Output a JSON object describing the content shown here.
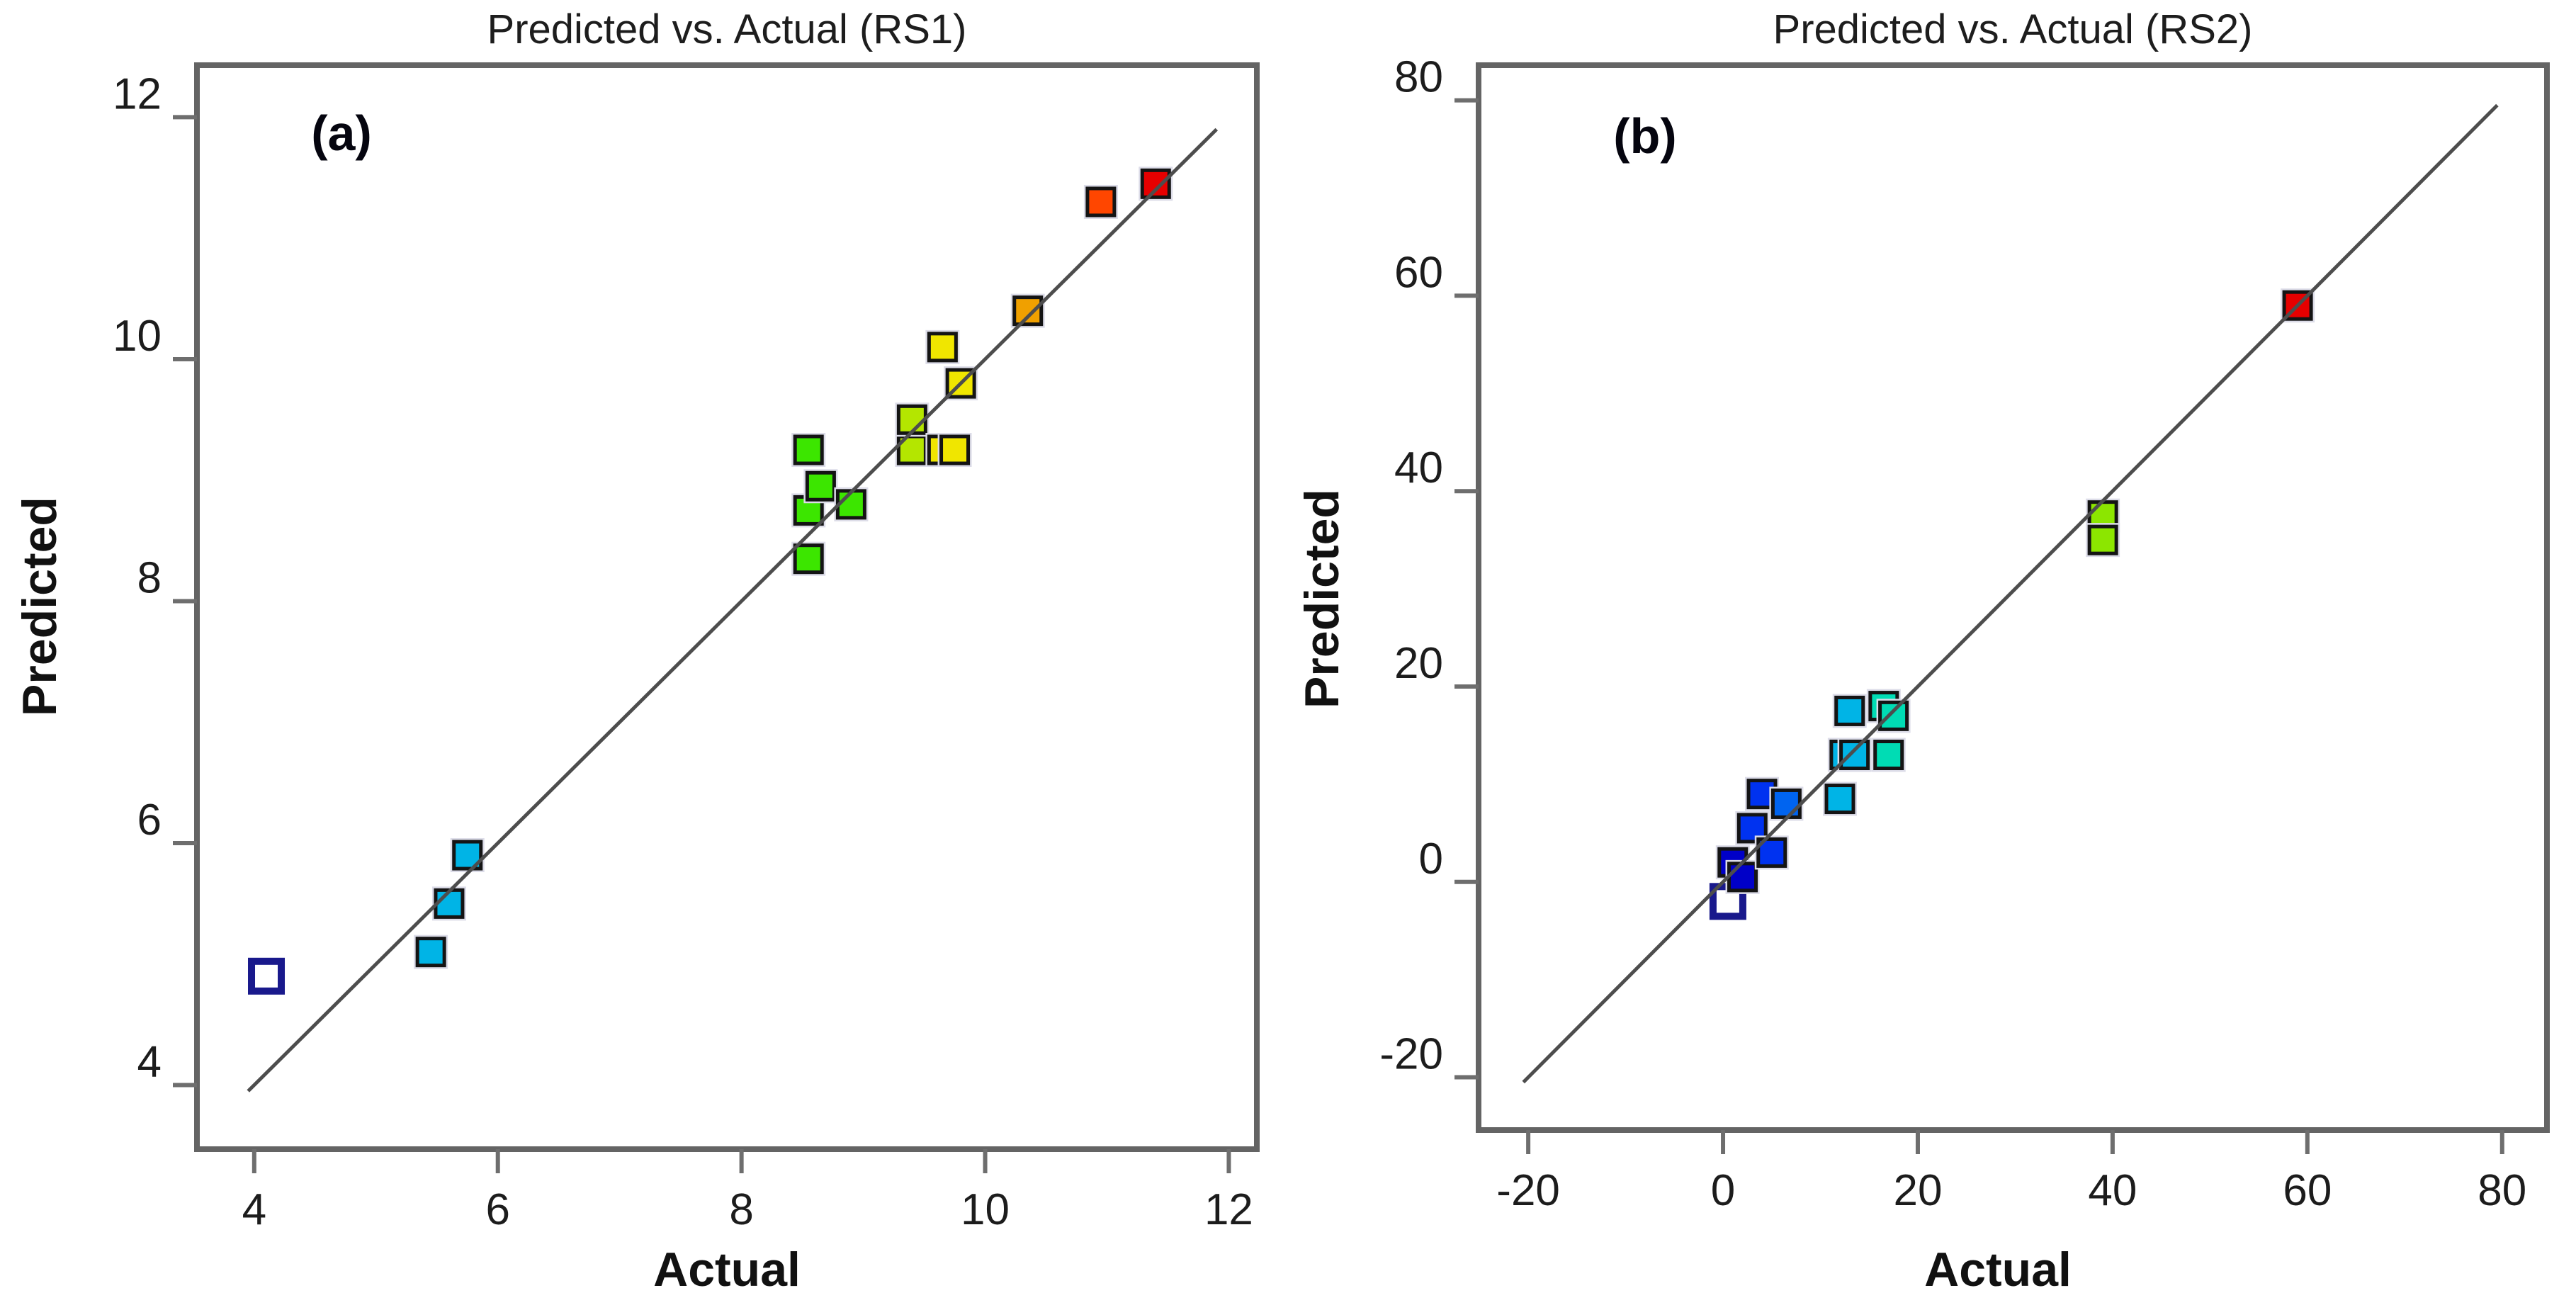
{
  "figure": {
    "panels": [
      {
        "letter": "(a)",
        "title": "Predicted vs. Actual (RS1)",
        "xlabel": "Actual",
        "ylabel": "Predicted"
      },
      {
        "letter": "(b)",
        "title": "Predicted vs. Actual (RS2)",
        "xlabel": "Actual",
        "ylabel": "Predicted"
      }
    ]
  },
  "colors": {
    "box_border": "#646464",
    "tick": "#6e6e6e",
    "tick_label": "#1c1c1c",
    "identity_line": "#4d4d4d",
    "marker_border": "#141414",
    "marker_halo": "#dcdce8",
    "open_marker_border": "#19198c",
    "navy": "#0000c8",
    "blue": "#0032f0",
    "light_blue": "#0064f0",
    "cyan": "#00b4e6",
    "teal": "#00dcb4",
    "green": "#3ce600",
    "green_yellow": "#8ce600",
    "yellow_green": "#b4e600",
    "yellow": "#f0e600",
    "orange": "#f0a000",
    "orange_red": "#ff4600",
    "red": "#e60000"
  },
  "chart_data": [
    {
      "type": "scatter",
      "panel": "(a)",
      "title": "Predicted vs. Actual (RS1)",
      "xlabel": "Actual",
      "ylabel": "Predicted",
      "xlim": [
        3.53,
        12.23
      ],
      "ylim": [
        3.47,
        12.43
      ],
      "xticks": [
        4,
        6,
        8,
        10,
        12
      ],
      "yticks": [
        4,
        6,
        8,
        10,
        12
      ],
      "grid": false,
      "legend": "none",
      "marker": "square",
      "identity_line": {
        "from": 3.95,
        "to": 11.9
      },
      "points": [
        {
          "x": 4.1,
          "y": 4.9,
          "color": "open_navy",
          "fill": "#ffffff",
          "stroke": "#19198c",
          "open": true
        },
        {
          "x": 5.45,
          "y": 5.1,
          "color": "cyan",
          "fill": "#00b4e6"
        },
        {
          "x": 5.6,
          "y": 5.5,
          "color": "cyan",
          "fill": "#00b4e6"
        },
        {
          "x": 5.75,
          "y": 5.9,
          "color": "cyan",
          "fill": "#00b4e6"
        },
        {
          "x": 8.55,
          "y": 8.35,
          "color": "green",
          "fill": "#3ce600"
        },
        {
          "x": 8.55,
          "y": 8.75,
          "color": "green",
          "fill": "#3ce600"
        },
        {
          "x": 8.65,
          "y": 8.95,
          "color": "green",
          "fill": "#3ce600"
        },
        {
          "x": 8.9,
          "y": 8.8,
          "color": "green",
          "fill": "#3ce600"
        },
        {
          "x": 8.55,
          "y": 9.25,
          "color": "green",
          "fill": "#3ce600"
        },
        {
          "x": 9.4,
          "y": 9.25,
          "color": "yellow_green",
          "fill": "#b4e600"
        },
        {
          "x": 9.4,
          "y": 9.5,
          "color": "yellow_green",
          "fill": "#b4e600"
        },
        {
          "x": 9.65,
          "y": 9.25,
          "color": "yellow",
          "fill": "#f0e600"
        },
        {
          "x": 9.75,
          "y": 9.25,
          "color": "yellow",
          "fill": "#f0e600"
        },
        {
          "x": 9.65,
          "y": 10.1,
          "color": "yellow",
          "fill": "#f0e600"
        },
        {
          "x": 9.8,
          "y": 9.8,
          "color": "yellow",
          "fill": "#f0e600"
        },
        {
          "x": 10.35,
          "y": 10.4,
          "color": "orange",
          "fill": "#f0a000"
        },
        {
          "x": 10.95,
          "y": 11.3,
          "color": "orange_red",
          "fill": "#ff4600"
        },
        {
          "x": 11.4,
          "y": 11.45,
          "color": "red",
          "fill": "#e60000"
        }
      ]
    },
    {
      "type": "scatter",
      "panel": "(b)",
      "title": "Predicted vs. Actual (RS2)",
      "xlabel": "Actual",
      "ylabel": "Predicted",
      "xlim": [
        -25.1,
        84.6
      ],
      "ylim": [
        -25.4,
        83.6
      ],
      "xticks": [
        -20,
        0,
        20,
        40,
        60,
        80
      ],
      "yticks": [
        -20,
        0,
        20,
        40,
        60,
        80
      ],
      "grid": false,
      "legend": "none",
      "marker": "square",
      "identity_line": {
        "from": -20.5,
        "to": 79.5
      },
      "points": [
        {
          "x": 0.5,
          "y": -2,
          "color": "open_navy",
          "fill": "#ffffff",
          "stroke": "#19198c",
          "open": true
        },
        {
          "x": 1,
          "y": 2,
          "color": "navy",
          "fill": "#0000c8"
        },
        {
          "x": 2,
          "y": 0.5,
          "color": "navy",
          "fill": "#0000c8"
        },
        {
          "x": 3,
          "y": 5.5,
          "color": "blue",
          "fill": "#0032f0"
        },
        {
          "x": 5,
          "y": 3,
          "color": "blue",
          "fill": "#0032f0"
        },
        {
          "x": 4,
          "y": 9,
          "color": "blue",
          "fill": "#0032f0"
        },
        {
          "x": 6.5,
          "y": 8,
          "color": "light_blue",
          "fill": "#0064f0"
        },
        {
          "x": 12,
          "y": 8.5,
          "color": "cyan",
          "fill": "#00b4e6"
        },
        {
          "x": 12.5,
          "y": 13,
          "color": "cyan",
          "fill": "#00b4e6"
        },
        {
          "x": 13.5,
          "y": 13,
          "color": "cyan",
          "fill": "#00b4e6"
        },
        {
          "x": 17,
          "y": 13,
          "color": "teal",
          "fill": "#00dcb4"
        },
        {
          "x": 13,
          "y": 17.5,
          "color": "cyan",
          "fill": "#00b4e6"
        },
        {
          "x": 16.5,
          "y": 18,
          "color": "teal",
          "fill": "#00dcb4"
        },
        {
          "x": 17.5,
          "y": 17,
          "color": "teal",
          "fill": "#00dcb4"
        },
        {
          "x": 39,
          "y": 37.5,
          "color": "green_yellow",
          "fill": "#8ce600"
        },
        {
          "x": 39,
          "y": 35,
          "color": "green_yellow",
          "fill": "#8ce600"
        },
        {
          "x": 59,
          "y": 59,
          "color": "red",
          "fill": "#e60000"
        }
      ]
    }
  ]
}
